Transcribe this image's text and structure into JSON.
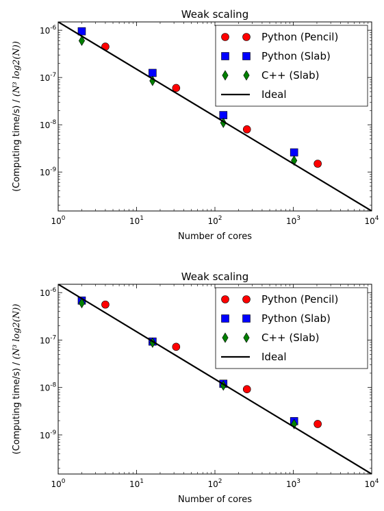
{
  "chart_data": [
    {
      "type": "scatter",
      "title": "Weak scaling",
      "xlabel": "Number of cores",
      "ylabel_text": "(Computing time/s) /",
      "ylabel_math": "(N³ log2(N))",
      "xscale": "log",
      "yscale": "log",
      "xlim": [
        1,
        10000
      ],
      "ylim": [
        1.5e-10,
        1.5e-06
      ],
      "xticks": [
        {
          "base": "10",
          "exp": "0"
        },
        {
          "base": "10",
          "exp": "1"
        },
        {
          "base": "10",
          "exp": "2"
        },
        {
          "base": "10",
          "exp": "3"
        },
        {
          "base": "10",
          "exp": "4"
        }
      ],
      "yticks": [
        {
          "base": "10",
          "exp": "-9"
        },
        {
          "base": "10",
          "exp": "-8"
        },
        {
          "base": "10",
          "exp": "-7"
        },
        {
          "base": "10",
          "exp": "-6"
        }
      ],
      "legend_position": "top-right",
      "grid": false,
      "series": [
        {
          "name": "Python (Pencil)",
          "marker": "circle",
          "color": "#ff0000",
          "x": [
            4,
            32,
            256,
            2048
          ],
          "y": [
            4.5e-07,
            6e-08,
            8e-09,
            1.5e-09
          ]
        },
        {
          "name": "Python (Slab)",
          "marker": "square",
          "color": "#0000ff",
          "x": [
            2,
            16,
            128,
            1024
          ],
          "y": [
            9.5e-07,
            1.25e-07,
            1.6e-08,
            2.6e-09
          ]
        },
        {
          "name": "C++ (Slab)",
          "marker": "diamond",
          "color": "#008000",
          "x": [
            2,
            16,
            128,
            1024
          ],
          "y": [
            6e-07,
            8.5e-08,
            1.1e-08,
            1.75e-09
          ]
        },
        {
          "name": "Ideal",
          "marker": "line",
          "color": "#000000",
          "x": [
            1,
            10000
          ],
          "y": [
            1.5e-06,
            1.5e-10
          ]
        }
      ]
    },
    {
      "type": "scatter",
      "title": "Weak scaling",
      "xlabel": "Number of cores",
      "ylabel_text": "(Computing time/s) /",
      "ylabel_math": "(N³ log2(N))",
      "xscale": "log",
      "yscale": "log",
      "xlim": [
        1,
        10000
      ],
      "ylim": [
        1.5e-10,
        1.5e-06
      ],
      "xticks": [
        {
          "base": "10",
          "exp": "0"
        },
        {
          "base": "10",
          "exp": "1"
        },
        {
          "base": "10",
          "exp": "2"
        },
        {
          "base": "10",
          "exp": "3"
        },
        {
          "base": "10",
          "exp": "4"
        }
      ],
      "yticks": [
        {
          "base": "10",
          "exp": "-9"
        },
        {
          "base": "10",
          "exp": "-8"
        },
        {
          "base": "10",
          "exp": "-7"
        },
        {
          "base": "10",
          "exp": "-6"
        }
      ],
      "legend_position": "top-right",
      "grid": false,
      "series": [
        {
          "name": "Python (Pencil)",
          "marker": "circle",
          "color": "#ff0000",
          "x": [
            4,
            32,
            256,
            2048
          ],
          "y": [
            5.6e-07,
            7.2e-08,
            9.2e-09,
            1.7e-09
          ]
        },
        {
          "name": "Python (Slab)",
          "marker": "square",
          "color": "#0000ff",
          "x": [
            2,
            16,
            128,
            1024
          ],
          "y": [
            6.8e-07,
            9.3e-08,
            1.2e-08,
            1.95e-09
          ]
        },
        {
          "name": "C++ (Slab)",
          "marker": "diamond",
          "color": "#008000",
          "x": [
            2,
            16,
            128,
            1024
          ],
          "y": [
            6e-07,
            8.8e-08,
            1.1e-08,
            1.7e-09
          ]
        },
        {
          "name": "Ideal",
          "marker": "line",
          "color": "#000000",
          "x": [
            1,
            10000
          ],
          "y": [
            1.5e-06,
            1.5e-10
          ]
        }
      ]
    }
  ]
}
